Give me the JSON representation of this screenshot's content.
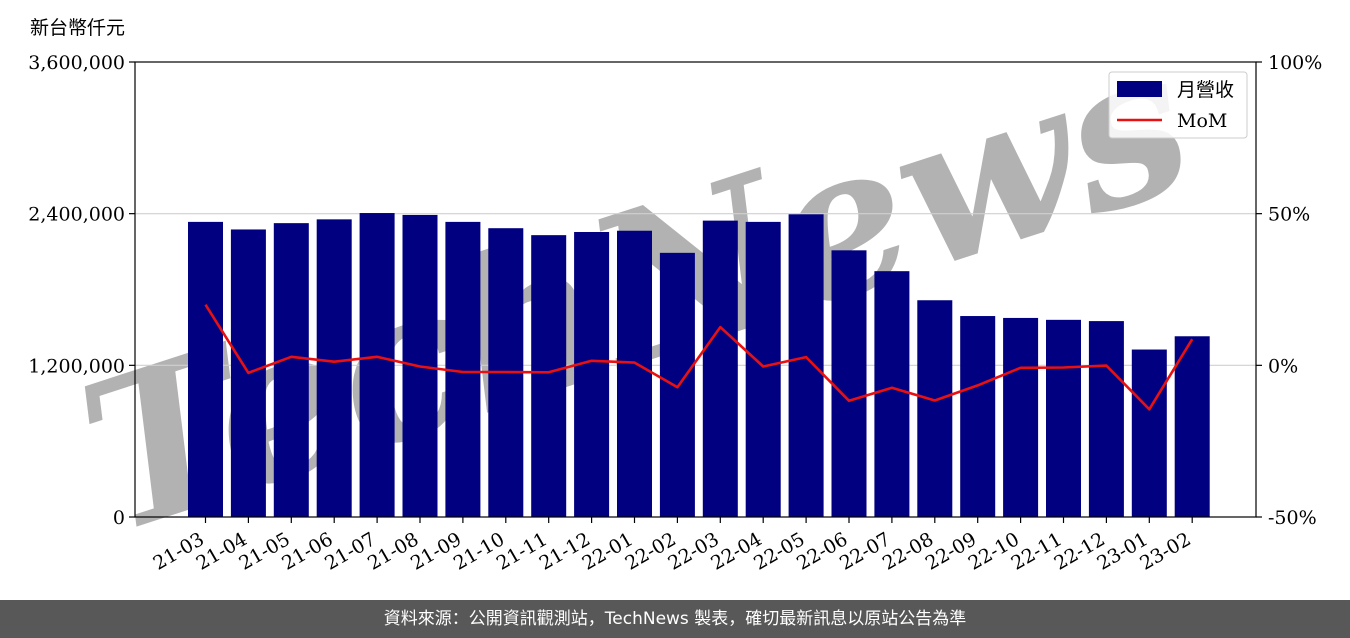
{
  "chart_data": {
    "type": "bar",
    "y_unit_label": "新台幣仟元",
    "categories": [
      "21-03",
      "21-04",
      "21-05",
      "21-06",
      "21-07",
      "21-08",
      "21-09",
      "21-10",
      "21-11",
      "21-12",
      "22-01",
      "22-02",
      "22-03",
      "22-04",
      "22-05",
      "22-06",
      "22-07",
      "22-08",
      "22-09",
      "22-10",
      "22-11",
      "22-12",
      "23-01",
      "23-02"
    ],
    "series": [
      {
        "name": "月營收",
        "axis": "left",
        "type": "bar",
        "color": "#000080",
        "values": [
          2335000,
          2275000,
          2325000,
          2355000,
          2405000,
          2390000,
          2335000,
          2285000,
          2230000,
          2255000,
          2265000,
          2090000,
          2345000,
          2335000,
          2395000,
          2110000,
          1945000,
          1715000,
          1590000,
          1575000,
          1560000,
          1550000,
          1325000,
          1430000
        ]
      },
      {
        "name": "MoM",
        "axis": "right",
        "type": "line",
        "color": "#e81010",
        "values": [
          20.0,
          -2.5,
          2.8,
          1.2,
          2.8,
          -0.4,
          -2.2,
          -2.2,
          -2.3,
          1.5,
          0.9,
          -7.2,
          12.6,
          -0.4,
          2.7,
          -11.7,
          -7.4,
          -11.6,
          -6.6,
          -0.8,
          -0.7,
          -0.1,
          -14.5,
          8.6
        ]
      }
    ],
    "y_left": {
      "min": 0,
      "max": 3600000,
      "ticks": [
        0,
        1200000,
        2400000,
        3600000
      ],
      "tick_labels": [
        "0",
        "1,200,000",
        "2,400,000",
        "3,600,000"
      ]
    },
    "y_right": {
      "min": -50,
      "max": 100,
      "ticks": [
        -50,
        0,
        50,
        100
      ],
      "tick_labels": [
        "-50%",
        "0%",
        "50%",
        "100%"
      ]
    },
    "grid": "horizontal",
    "legend_position": "top-right"
  },
  "watermark": "TechNews",
  "footer_text": "資料來源：公開資訊觀測站，TechNews 製表，確切最新訊息以原站公告為準"
}
